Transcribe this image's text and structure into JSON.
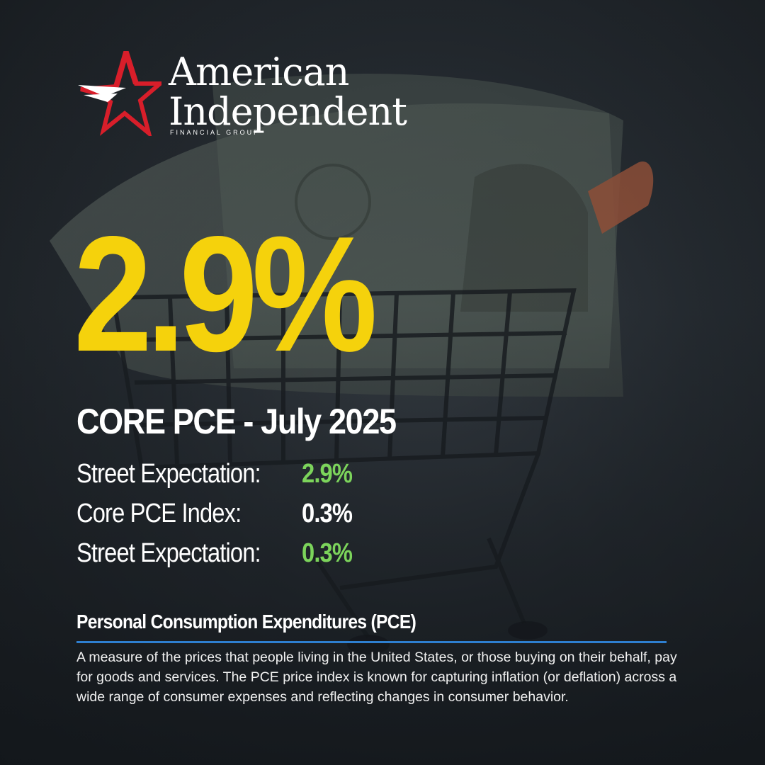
{
  "brand": {
    "name_line1": "American",
    "name_line2": "Independent",
    "tagline": "FINANCIAL GROUP",
    "star_color": "#d81e2a",
    "logo_icon": "star-logo-icon"
  },
  "headline": {
    "value": "2.9%",
    "value_color": "#f5d20c",
    "subtitle": "CORE PCE - July 2025"
  },
  "stats": [
    {
      "label": "Street Expectation:",
      "value": "2.9%",
      "value_color": "#7cd45b"
    },
    {
      "label": "Core PCE Index:",
      "value": "0.3%",
      "value_color": "#ffffff"
    },
    {
      "label": "Street Expectation:",
      "value": "0.3%",
      "value_color": "#7cd45b"
    }
  ],
  "definition": {
    "title": "Personal Consumption Expenditures (PCE)",
    "rule_color": "#2e7fd0",
    "body": "A measure of the prices that people living in the United States, or those buying on their behalf, pay for goods and services. The PCE price index is known for capturing inflation (or deflation) across a wide range of consumer expenses and reflecting changes in consumer behavior."
  },
  "background": {
    "description_icon": "shopping-cart-with-money-icon"
  }
}
